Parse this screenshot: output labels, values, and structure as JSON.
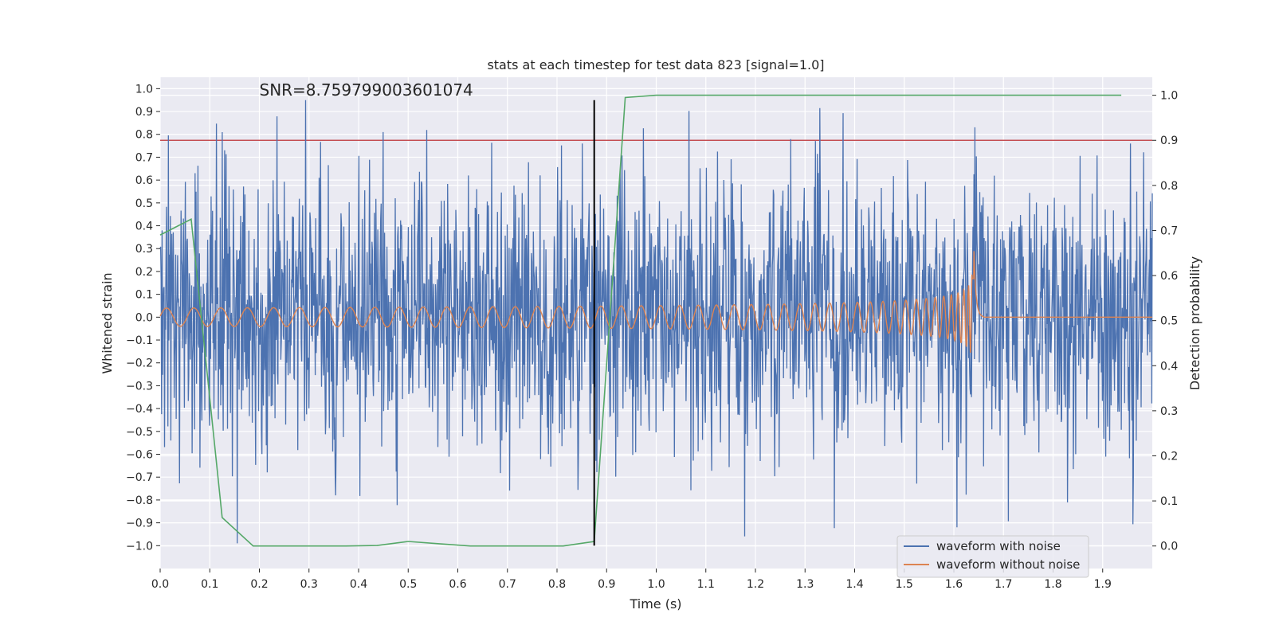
{
  "chart_data": {
    "type": "line",
    "title": "stats at each timestep for test data 823 [signal=1.0]",
    "xlabel": "Time (s)",
    "ylabel": "Whitened strain",
    "y2label": "Detection probability",
    "xlim": [
      0.0,
      2.0
    ],
    "ylim": [
      -1.1,
      1.05
    ],
    "y2lim": [
      -0.05,
      1.04
    ],
    "x_ticks": [
      0.0,
      0.1,
      0.2,
      0.3,
      0.4,
      0.5,
      0.6,
      0.7,
      0.8,
      0.9,
      1.0,
      1.1,
      1.2,
      1.3,
      1.4,
      1.5,
      1.6,
      1.7,
      1.8,
      1.9
    ],
    "x_tick_labels": [
      "0.0",
      "0.1",
      "0.2",
      "0.3",
      "0.4",
      "0.5",
      "0.6",
      "0.7",
      "0.8",
      "0.9",
      "1.0",
      "1.1",
      "1.2",
      "1.3",
      "1.4",
      "1.5",
      "1.6",
      "1.7",
      "1.8",
      "1.9"
    ],
    "y_ticks": [
      1.0,
      0.9,
      0.8,
      0.7,
      0.6,
      0.5,
      0.4,
      0.3,
      0.2,
      0.1,
      0.0,
      -0.1,
      -0.2,
      -0.3,
      -0.4,
      -0.5,
      -0.6,
      -0.7,
      -0.8,
      -0.9,
      -1.0
    ],
    "y_tick_labels": [
      "1.0",
      "0.9",
      "0.8",
      "0.7",
      "0.6",
      "0.5",
      "0.4",
      "0.3",
      "0.2",
      "0.1",
      "0.0",
      "−0.1",
      "−0.2",
      "−0.3",
      "−0.4",
      "−0.5",
      "−0.6",
      "−0.7",
      "−0.8",
      "−0.9",
      "−1.0"
    ],
    "y2_ticks": [
      1.0,
      0.9,
      0.8,
      0.7,
      0.6,
      0.5,
      0.4,
      0.3,
      0.2,
      0.1,
      0.0
    ],
    "y2_tick_labels": [
      "1.0",
      "0.9",
      "0.8",
      "0.7",
      "0.6",
      "0.5",
      "0.4",
      "0.3",
      "0.2",
      "0.1",
      "0.0"
    ],
    "annotation": "SNR=8.759799003601074",
    "annotation_pos": {
      "x": 0.2,
      "y": 0.97
    },
    "threshold": {
      "axis": "y2",
      "value": 0.9,
      "color": "#c44e52"
    },
    "marker_line": {
      "x": 0.875,
      "y_range": [
        -1.0,
        0.95
      ],
      "color": "#000000"
    },
    "series": [
      {
        "name": "waveform with noise",
        "axis": "y",
        "color": "#4c72b0",
        "kind": "noise",
        "x_range": [
          0.0,
          2.0
        ],
        "samples": 2048,
        "std": 0.3,
        "min_peak": -0.99,
        "max_peak": 0.95
      },
      {
        "name": "waveform without noise",
        "axis": "y",
        "color": "#dd8452",
        "kind": "chirp",
        "x_range": [
          0.0,
          2.0
        ],
        "merger_time": 1.64,
        "start_freq_hz": 18,
        "end_freq_hz": 110,
        "start_amp": 0.04,
        "peak_amp": 0.38,
        "ringdown_end": 1.66
      },
      {
        "name": "detection probability",
        "axis": "y2",
        "color": "#55a868",
        "kind": "points",
        "x": [
          0.0,
          0.0625,
          0.125,
          0.1875,
          0.25,
          0.3125,
          0.375,
          0.4375,
          0.5,
          0.5625,
          0.625,
          0.6875,
          0.75,
          0.8125,
          0.875,
          0.9375,
          1.0,
          1.0625,
          1.125,
          1.1875,
          1.25,
          1.3125,
          1.375,
          1.4375,
          1.5,
          1.5625,
          1.625,
          1.6875,
          1.75,
          1.8125,
          1.875,
          1.9375
        ],
        "y": [
          0.69,
          0.725,
          0.063,
          0.0,
          0.0,
          0.0,
          0.0,
          0.001,
          0.01,
          0.005,
          0.0,
          0.0,
          0.0,
          0.0,
          0.01,
          0.995,
          1.0,
          1.0,
          1.0,
          1.0,
          1.0,
          1.0,
          1.0,
          1.0,
          1.0,
          1.0,
          1.0,
          1.0,
          1.0,
          1.0,
          1.0,
          1.0
        ]
      }
    ],
    "legend": {
      "placement": "bottom-right",
      "entries": [
        {
          "label": "waveform with noise",
          "color": "#4c72b0"
        },
        {
          "label": "waveform without noise",
          "color": "#dd8452"
        }
      ]
    },
    "grid": true,
    "background": "#eaeaf2"
  }
}
